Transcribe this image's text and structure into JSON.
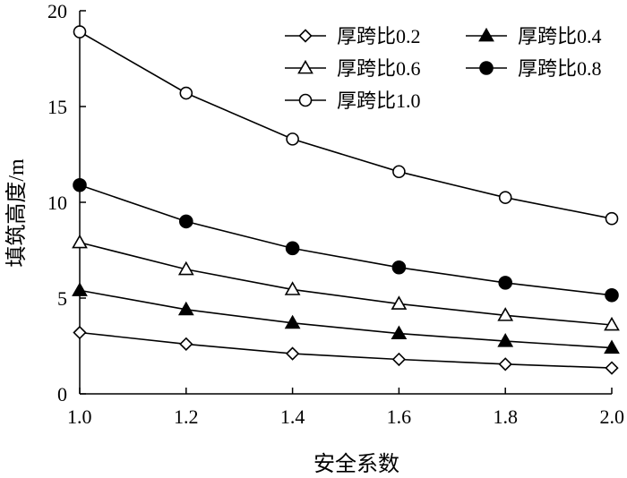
{
  "chart_data": {
    "type": "line",
    "title": "",
    "xlabel": "安全系数",
    "ylabel": "填筑高度/m",
    "x": [
      1.0,
      1.2,
      1.4,
      1.6,
      1.8,
      2.0
    ],
    "xlim": [
      1.0,
      2.0
    ],
    "ylim": [
      0,
      20
    ],
    "xticks": [
      "1.0",
      "1.2",
      "1.4",
      "1.6",
      "1.8",
      "2.0"
    ],
    "yticks": [
      "0",
      "5",
      "10",
      "15",
      "20"
    ],
    "grid": false,
    "legend_position": "top-right",
    "series": [
      {
        "name": "厚跨比0.2",
        "marker": "diamond-open",
        "values": [
          3.2,
          2.6,
          2.1,
          1.8,
          1.55,
          1.35
        ]
      },
      {
        "name": "厚跨比0.4",
        "marker": "triangle-filled",
        "values": [
          5.4,
          4.4,
          3.7,
          3.15,
          2.75,
          2.4
        ]
      },
      {
        "name": "厚跨比0.6",
        "marker": "triangle-open",
        "values": [
          7.9,
          6.5,
          5.45,
          4.7,
          4.1,
          3.6
        ]
      },
      {
        "name": "厚跨比0.8",
        "marker": "circle-filled",
        "values": [
          10.9,
          9.0,
          7.6,
          6.6,
          5.8,
          5.15
        ]
      },
      {
        "name": "厚跨比1.0",
        "marker": "circle-open",
        "values": [
          18.9,
          15.7,
          13.3,
          11.6,
          10.25,
          9.15
        ]
      }
    ]
  }
}
